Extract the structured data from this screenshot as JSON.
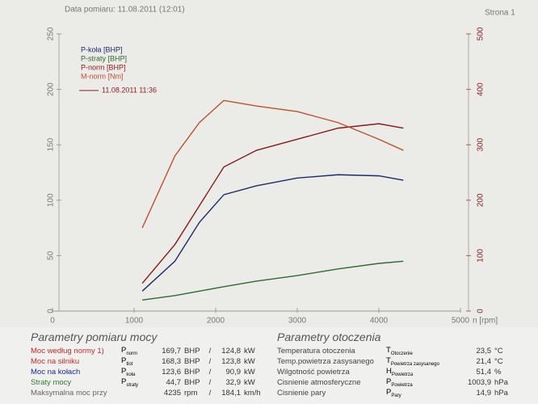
{
  "header": {
    "date": "Data pomiaru: 11.08.2011 (12:01)",
    "page": "Strona 1"
  },
  "chart_data": {
    "type": "line",
    "x": [
      1100,
      1500,
      1800,
      2100,
      2500,
      3000,
      3500,
      4000,
      4300
    ],
    "xlim": [
      0,
      5000
    ],
    "xticks": [
      0,
      1000,
      2000,
      3000,
      4000,
      5000
    ],
    "xlabel": "n [rpm]",
    "ylim": [
      0,
      250
    ],
    "yticks": [
      0,
      50,
      100,
      150,
      200,
      250
    ],
    "y2lim": [
      0,
      500
    ],
    "y2ticks": [
      0,
      100,
      200,
      300,
      400,
      500
    ],
    "legend_note": "11.08.2011 11:36",
    "series": [
      {
        "name": "P-koła [BHP]",
        "color": "#1f2a6e",
        "values": [
          18,
          45,
          80,
          105,
          113,
          120,
          123,
          122,
          118
        ]
      },
      {
        "name": "P-straty [BHP]",
        "color": "#2e6b2e",
        "values": [
          10,
          14,
          18,
          22,
          27,
          32,
          38,
          43,
          45
        ]
      },
      {
        "name": "P-norm [BHP]",
        "color": "#8b1a1a",
        "values": [
          25,
          60,
          95,
          130,
          145,
          155,
          165,
          169,
          165
        ]
      },
      {
        "name": "M-norm [Nm]",
        "color": "#c0502a",
        "axis": "y2",
        "values": [
          150,
          280,
          340,
          380,
          370,
          360,
          340,
          310,
          290
        ]
      }
    ]
  },
  "power_table": {
    "title": "Parametry pomiaru mocy",
    "separator": "/",
    "rows": [
      {
        "label": "Moc według normy 1)",
        "symbol": "P",
        "sub": "norm",
        "value1": "169,7",
        "unit1": "BHP",
        "value2": "124,8",
        "unit2": "kW",
        "color": "#c0282d"
      },
      {
        "label": "Moc na silniku",
        "symbol": "P",
        "sub": "tlot",
        "value1": "168,3",
        "unit1": "BHP",
        "value2": "123,8",
        "unit2": "kW",
        "color": "#c0282d"
      },
      {
        "label": "Moc na kołach",
        "symbol": "P",
        "sub": "koła",
        "value1": "123,6",
        "unit1": "BHP",
        "value2": "90,9",
        "unit2": "kW",
        "color": "#1f2a8e"
      },
      {
        "label": "Straty mocy",
        "symbol": "P",
        "sub": "straty",
        "value1": "44,7",
        "unit1": "BHP",
        "value2": "32,9",
        "unit2": "kW",
        "color": "#2e7b2e"
      },
      {
        "label": "Maksymalna moc przy",
        "value1": "4235",
        "unit1": "rpm",
        "value2": "184,1",
        "unit2": "km/h",
        "color": "#666666"
      }
    ]
  },
  "ambient_table": {
    "title": "Parametry otoczenia",
    "rows": [
      {
        "label": "Temperatura otoczenia",
        "symbol": "T",
        "sub": "Otoczenie",
        "value": "23,5",
        "unit": "°C"
      },
      {
        "label": "Temp.powietrza zasysanego",
        "symbol": "T",
        "sub": "Powietrza zasysanego",
        "value": "21,4",
        "unit": "°C"
      },
      {
        "label": "Wilgotność powietrza",
        "symbol": "H",
        "sub": "Powietrza",
        "value": "51,4",
        "unit": "%"
      },
      {
        "label": "Cisnienie atmosferyczne",
        "symbol": "P",
        "sub": "Powietrza",
        "value": "1003,9",
        "unit": "hPa"
      },
      {
        "label": "Cisnienie pary",
        "symbol": "P",
        "sub": "Pary",
        "value": "14,9",
        "unit": "hPa"
      }
    ]
  }
}
